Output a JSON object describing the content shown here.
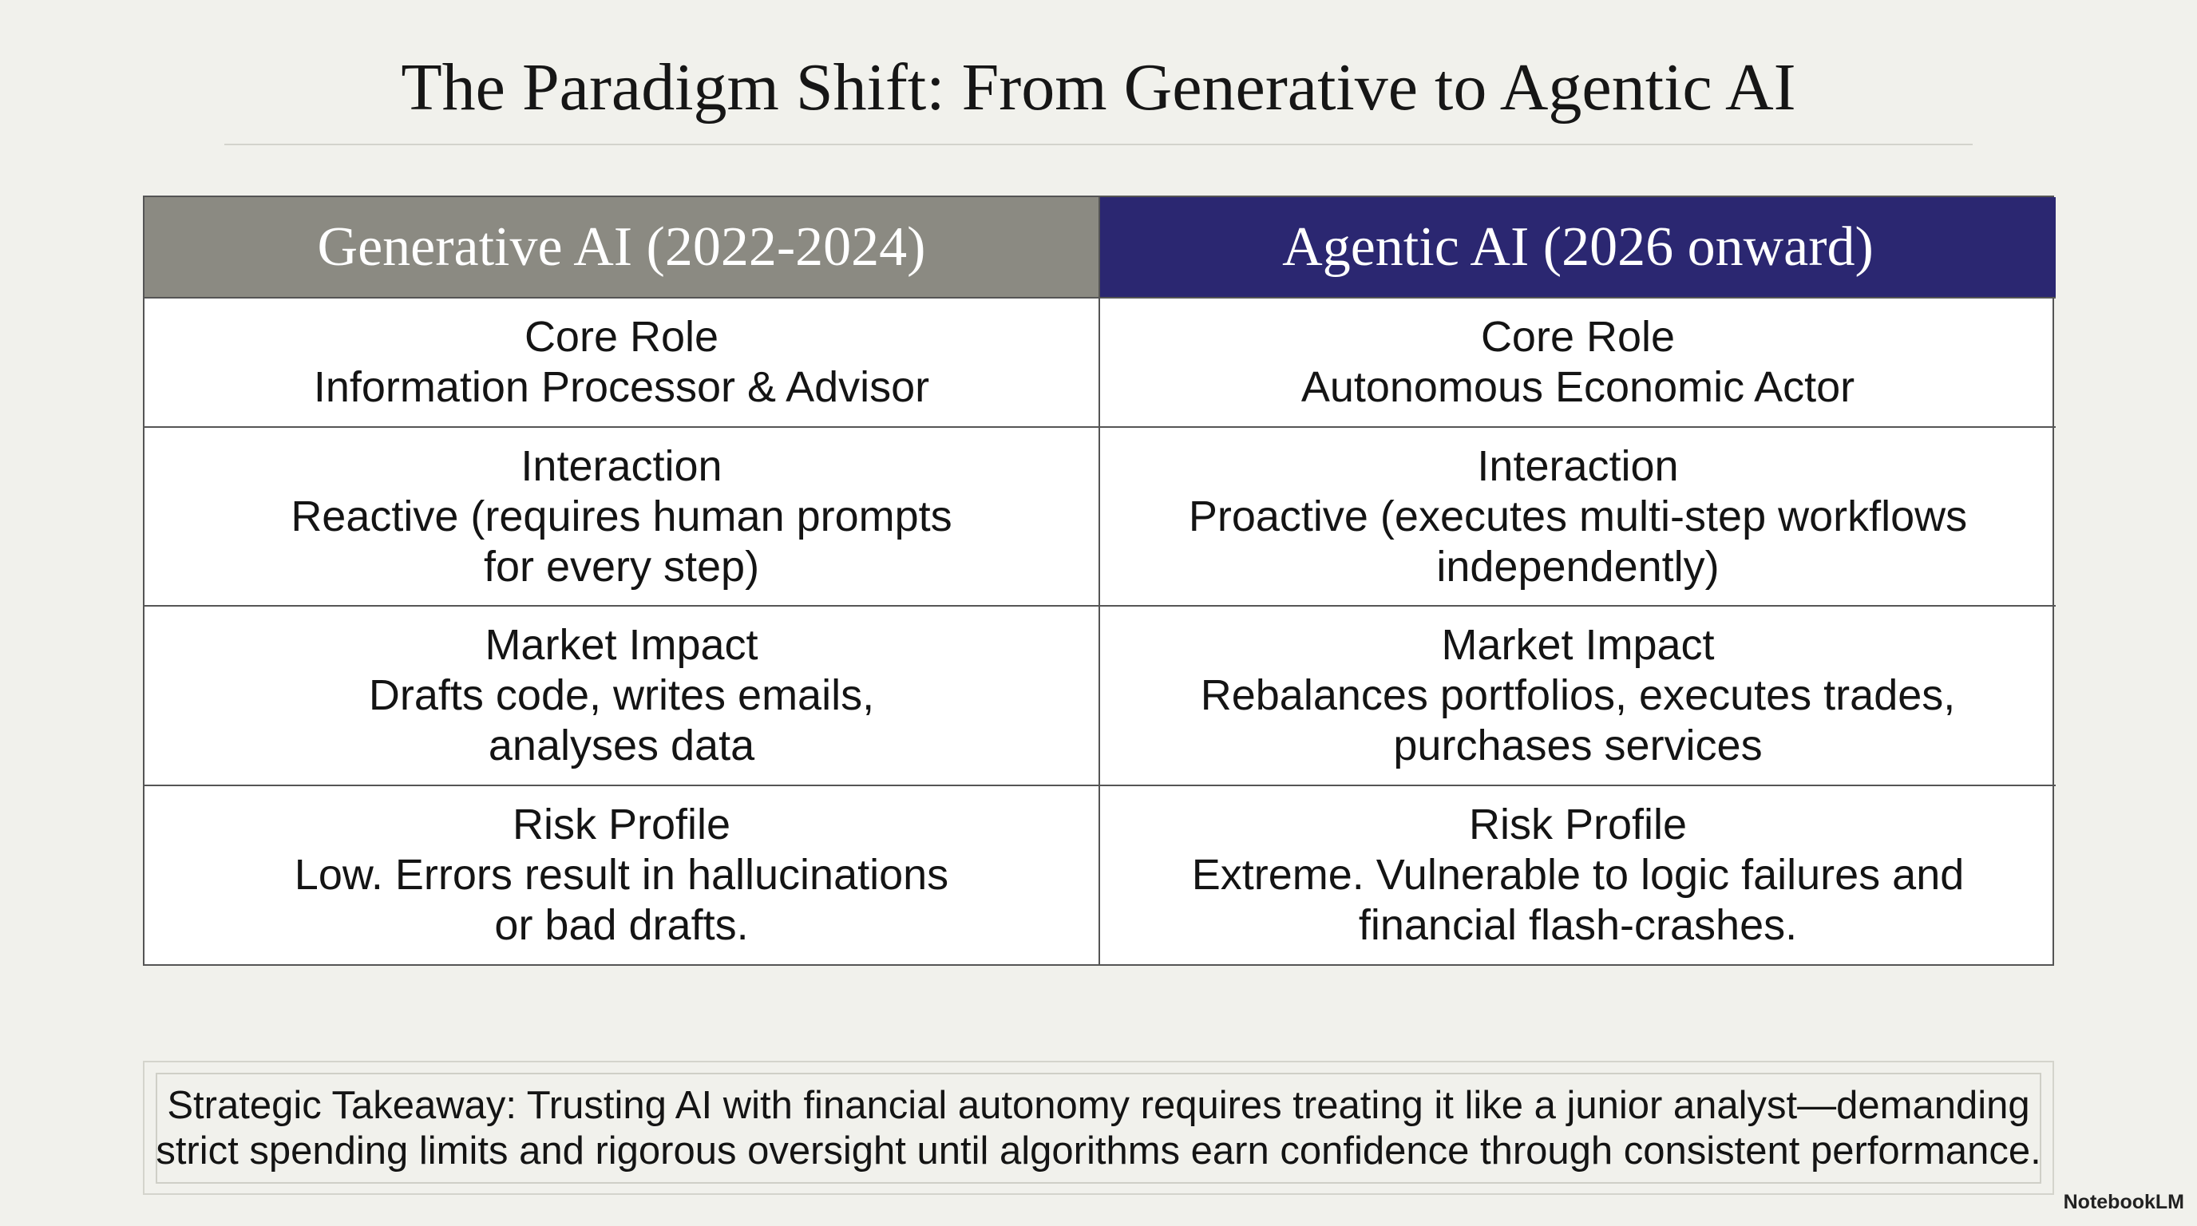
{
  "title": "The Paradigm Shift: From Generative to Agentic AI",
  "table": {
    "headers": [
      "Generative AI (2022-2024)",
      "Agentic AI (2026 onward)"
    ],
    "rows": [
      [
        {
          "label": "Core Role",
          "lines": [
            "Information Processor & Advisor"
          ]
        },
        {
          "label": "Core Role",
          "lines": [
            "Autonomous Economic Actor"
          ]
        }
      ],
      [
        {
          "label": "Interaction",
          "lines": [
            "Reactive (requires human prompts",
            "for every step)"
          ]
        },
        {
          "label": "Interaction",
          "lines": [
            "Proactive (executes multi-step workflows",
            "independently)"
          ]
        }
      ],
      [
        {
          "label": "Market Impact",
          "lines": [
            "Drafts code, writes emails,",
            "analyses data"
          ]
        },
        {
          "label": "Market Impact",
          "lines": [
            "Rebalances portfolios, executes trades,",
            "purchases services"
          ]
        }
      ],
      [
        {
          "label": "Risk Profile",
          "lines": [
            "Low. Errors result in hallucinations",
            "or bad drafts."
          ]
        },
        {
          "label": "Risk Profile",
          "lines": [
            "Extreme. Vulnerable to logic failures and",
            "financial flash-crashes."
          ]
        }
      ]
    ]
  },
  "takeaway": {
    "lines": [
      "Strategic Takeaway: Trusting AI with financial autonomy requires treating it like a junior analyst—demanding",
      "strict spending limits and rigorous oversight until algorithms earn confidence through consistent performance."
    ]
  },
  "watermark": "NotebookLM"
}
